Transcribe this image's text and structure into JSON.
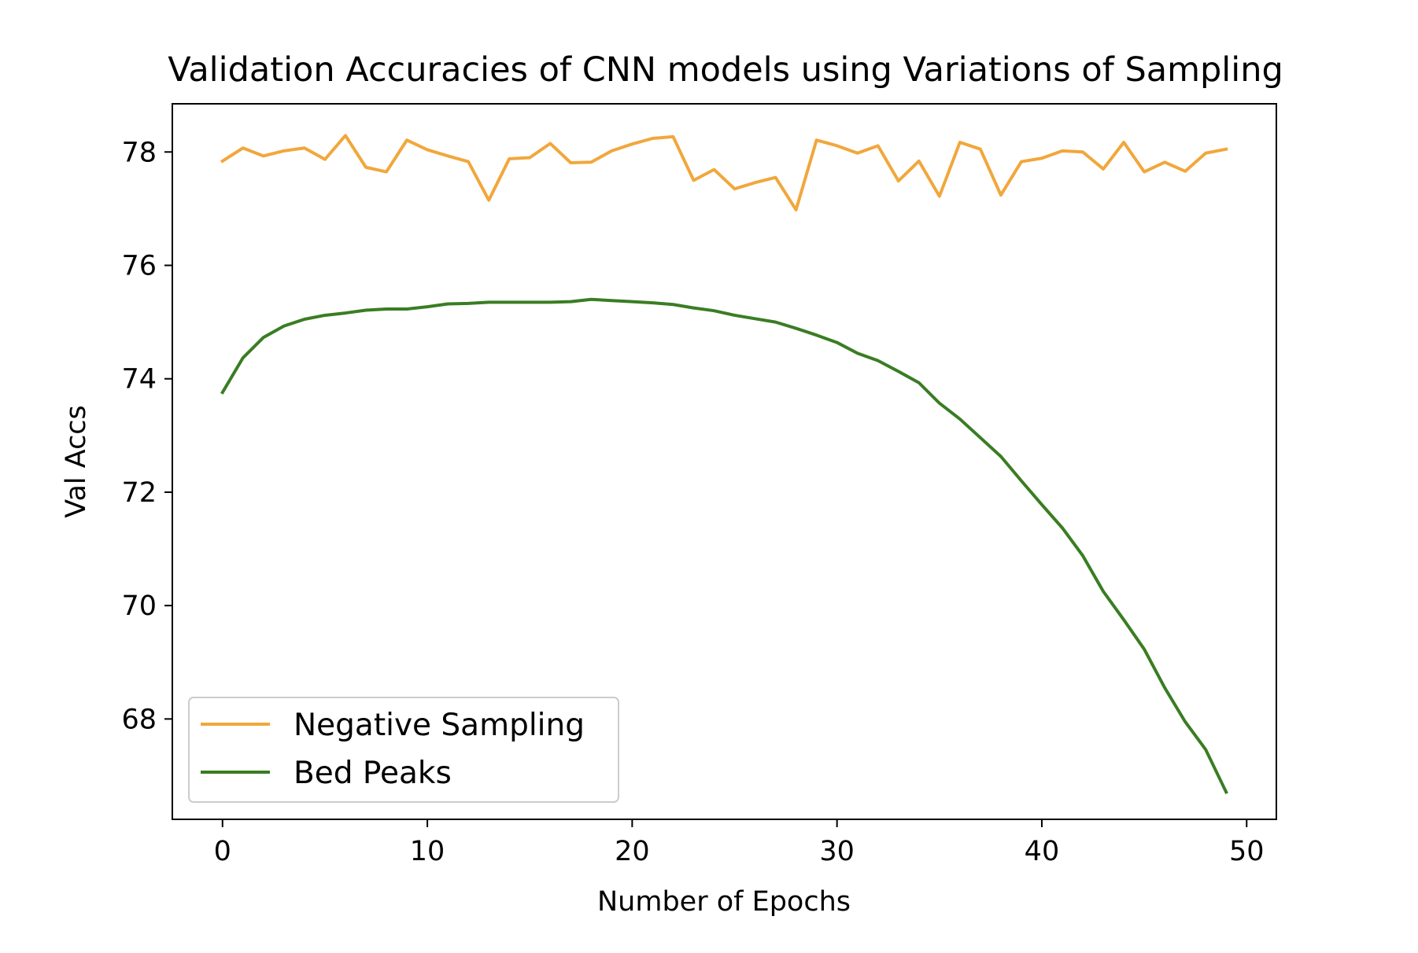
{
  "chart_data": {
    "type": "line",
    "title": "Validation Accuracies of CNN models using Variations of Sampling",
    "xlabel": "Number of Epochs",
    "ylabel": "Val Accs",
    "xlim": [
      -2.45,
      51.45
    ],
    "ylim": [
      66.23,
      78.85
    ],
    "xticks": [
      0,
      10,
      20,
      30,
      40,
      50
    ],
    "yticks": [
      68,
      70,
      72,
      74,
      76,
      78
    ],
    "legend_position": "lower-left",
    "grid": false,
    "series": [
      {
        "name": "Negative Sampling",
        "color": "#f1a73c",
        "x": [
          0,
          1,
          2,
          3,
          4,
          5,
          6,
          7,
          8,
          9,
          10,
          11,
          12,
          13,
          14,
          15,
          16,
          17,
          18,
          19,
          20,
          21,
          22,
          23,
          24,
          25,
          26,
          27,
          28,
          29,
          30,
          31,
          32,
          33,
          34,
          35,
          36,
          37,
          38,
          39,
          40,
          41,
          42,
          43,
          44,
          45,
          46,
          47,
          48,
          49
        ],
        "y": [
          77.84,
          78.07,
          77.93,
          78.02,
          78.07,
          77.87,
          78.29,
          77.73,
          77.65,
          78.21,
          78.04,
          77.93,
          77.83,
          77.15,
          77.88,
          77.9,
          78.15,
          77.81,
          77.82,
          78.02,
          78.14,
          78.24,
          78.27,
          77.5,
          77.69,
          77.35,
          77.46,
          77.55,
          76.98,
          78.21,
          78.11,
          77.98,
          78.11,
          77.49,
          77.84,
          77.22,
          78.17,
          78.05,
          77.24,
          77.83,
          77.89,
          78.02,
          78.0,
          77.7,
          78.17,
          77.65,
          77.82,
          77.66,
          77.98,
          78.05
        ]
      },
      {
        "name": "Bed Peaks",
        "color": "#3a7d23",
        "x": [
          0,
          1,
          2,
          3,
          4,
          5,
          6,
          7,
          8,
          9,
          10,
          11,
          12,
          13,
          14,
          15,
          16,
          17,
          18,
          19,
          20,
          21,
          22,
          23,
          24,
          25,
          26,
          27,
          28,
          29,
          30,
          31,
          32,
          33,
          34,
          35,
          36,
          37,
          38,
          39,
          40,
          41,
          42,
          43,
          44,
          45,
          46,
          47,
          48,
          49
        ],
        "y": [
          73.76,
          74.37,
          74.73,
          74.93,
          75.05,
          75.12,
          75.16,
          75.21,
          75.23,
          75.23,
          75.27,
          75.32,
          75.33,
          75.35,
          75.35,
          75.35,
          75.35,
          75.36,
          75.4,
          75.38,
          75.36,
          75.34,
          75.31,
          75.25,
          75.2,
          75.12,
          75.06,
          75.0,
          74.89,
          74.77,
          74.64,
          74.45,
          74.32,
          74.13,
          73.93,
          73.57,
          73.29,
          72.96,
          72.63,
          72.2,
          71.78,
          71.37,
          70.88,
          70.25,
          69.75,
          69.23,
          68.55,
          67.95,
          67.46,
          66.71
        ]
      }
    ]
  }
}
